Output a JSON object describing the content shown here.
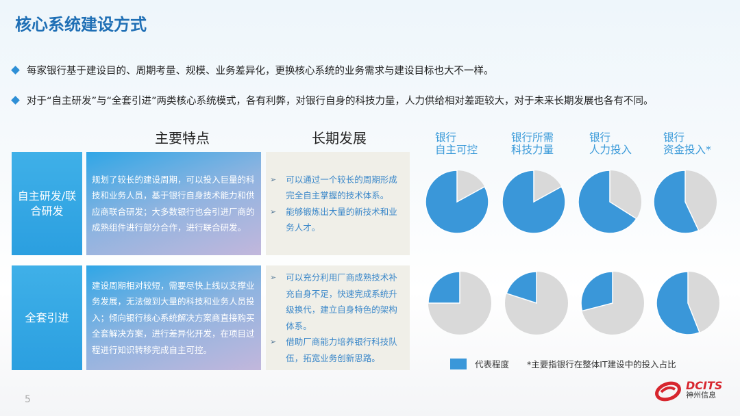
{
  "title": "核心系统建设方式",
  "bullets": [
    "每家银行基于建设目的、周期考量、规模、业务差异化，更换核心系统的业务需求与建设目标也大不一样。",
    "对于“自主研发”与“全套引进”两类核心系统模式，各有利弊，对银行自身的科技力量，人力供给相对差距较大，对于未来长期发展也各有不同。"
  ],
  "columns": {
    "features": "主要特点",
    "development": "长期发展"
  },
  "rows": [
    {
      "label": "自主研发/联合研发",
      "features": "规划了较长的建设周期，可以投入巨量的科技和业务人员，基于银行自身技术能力和供应商联合研发；大多数银行也会引进厂商的成熟组件进行部分合作，进行联合研发。",
      "development": [
        "可以通过一个较长的周期形成完全自主掌握的技术体系。",
        "能够锻炼出大量的新技术和业务人才。"
      ]
    },
    {
      "label": "全套引进",
      "features": "建设周期相对较短，需要尽快上线以支撑业务发展，无法做到大量的科技和业务人员投入；倾向银行核心系统解决方案商直接购买全套解决方案，进行差异化开发，在项目过程进行知识转移完成自主可控。",
      "development": [
        "可以充分利用厂商成熟技术补充自身不足，快速完成系统升级换代，建立自身特色的架构体系。",
        "借助厂商能力培养银行科技队伍，拓宽业务创新思路。"
      ]
    }
  ],
  "chart_data": {
    "type": "pie",
    "categories": [
      "银行\n自主可控",
      "银行所需\n科技力量",
      "银行\n人力投入",
      "银行\n资金投入*"
    ],
    "series": [
      {
        "row": "自主研发/联合研发",
        "values": [
          0.83,
          0.83,
          0.66,
          0.57
        ]
      },
      {
        "row": "全套引进",
        "values": [
          0.25,
          0.2,
          0.29,
          0.56
        ]
      }
    ],
    "legend": "代表程度",
    "footnote": "*主要指银行在整体IT建设中的投入占比",
    "colors": {
      "value": "#3a97d9",
      "rest": "#d9d9d9"
    }
  },
  "page_number": "5",
  "logo": {
    "text": "DCITS",
    "subtext": "神州信息",
    "color": "#d7262e"
  }
}
